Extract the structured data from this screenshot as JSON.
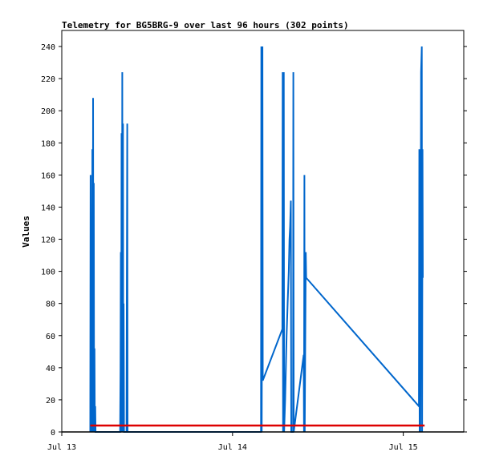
{
  "chart_data": {
    "type": "line",
    "title": "Telemetry for BG5BRG-9 over last 96 hours (302 points)",
    "xlabel": "",
    "ylabel": "Values",
    "ylim": [
      0,
      250
    ],
    "yticks": [
      0,
      20,
      40,
      60,
      80,
      100,
      120,
      140,
      160,
      180,
      200,
      220,
      240
    ],
    "xlim_hours": [
      0,
      56.5
    ],
    "xticks": [
      {
        "label": "Jul 13",
        "hour": 0
      },
      {
        "label": "Jul 14",
        "hour": 24
      },
      {
        "label": "Jul 15",
        "hour": 48
      }
    ],
    "grid": false,
    "series": [
      {
        "color": "#0066cc",
        "points": [
          [
            4.0,
            0
          ],
          [
            4.05,
            160
          ],
          [
            4.1,
            0
          ],
          [
            4.2,
            128
          ],
          [
            4.25,
            0
          ],
          [
            4.3,
            176
          ],
          [
            4.35,
            0
          ],
          [
            4.4,
            208
          ],
          [
            4.45,
            0
          ],
          [
            4.5,
            155
          ],
          [
            4.55,
            0
          ],
          [
            4.6,
            52
          ],
          [
            4.65,
            0
          ],
          [
            4.7,
            16
          ],
          [
            4.75,
            0
          ],
          [
            8.2,
            0
          ],
          [
            8.25,
            38
          ],
          [
            8.3,
            112
          ],
          [
            8.35,
            0
          ],
          [
            8.4,
            186
          ],
          [
            8.45,
            0
          ],
          [
            8.5,
            224
          ],
          [
            8.55,
            0
          ],
          [
            8.6,
            192
          ],
          [
            8.65,
            0
          ],
          [
            8.7,
            80
          ],
          [
            8.75,
            0
          ],
          [
            9.1,
            0
          ],
          [
            9.15,
            96
          ],
          [
            9.2,
            192
          ],
          [
            9.25,
            0
          ],
          [
            28.0,
            0
          ],
          [
            28.05,
            240
          ],
          [
            28.1,
            0
          ],
          [
            28.2,
            240
          ],
          [
            28.25,
            32
          ],
          [
            31.0,
            64
          ],
          [
            31.05,
            224
          ],
          [
            31.1,
            0
          ],
          [
            31.2,
            224
          ],
          [
            31.25,
            0
          ],
          [
            31.4,
            20
          ],
          [
            31.5,
            40
          ],
          [
            31.6,
            60
          ],
          [
            31.75,
            80
          ],
          [
            31.9,
            100
          ],
          [
            32.0,
            120
          ],
          [
            32.1,
            128
          ],
          [
            32.2,
            144
          ],
          [
            32.25,
            0
          ],
          [
            32.5,
            0
          ],
          [
            32.55,
            224
          ],
          [
            32.6,
            0
          ],
          [
            34.0,
            48
          ],
          [
            34.05,
            0
          ],
          [
            34.1,
            160
          ],
          [
            34.15,
            0
          ],
          [
            34.3,
            112
          ],
          [
            34.35,
            96
          ],
          [
            50.2,
            16
          ],
          [
            50.25,
            176
          ],
          [
            50.3,
            0
          ],
          [
            50.35,
            160
          ],
          [
            50.4,
            0
          ],
          [
            50.5,
            224
          ],
          [
            50.6,
            240
          ],
          [
            50.65,
            0
          ],
          [
            50.7,
            176
          ],
          [
            50.75,
            96
          ]
        ]
      },
      {
        "color": "#dd0000",
        "points": [
          [
            4.0,
            4
          ],
          [
            51.0,
            4
          ]
        ]
      }
    ]
  }
}
